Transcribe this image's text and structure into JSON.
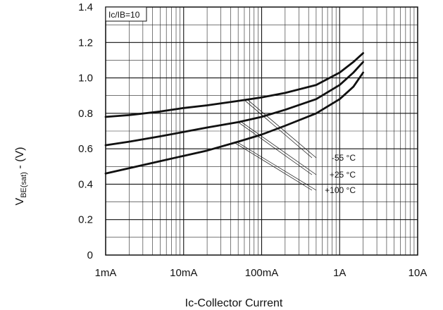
{
  "chart_data": {
    "type": "line",
    "xscale": "log",
    "xlim": [
      0.001,
      10
    ],
    "ylim": [
      0,
      1.4
    ],
    "x_ticks": [
      {
        "value": 0.001,
        "label": "1mA"
      },
      {
        "value": 0.01,
        "label": "10mA"
      },
      {
        "value": 0.1,
        "label": "100mA"
      },
      {
        "value": 1,
        "label": "1A"
      },
      {
        "value": 10,
        "label": "10A"
      }
    ],
    "y_ticks": [
      {
        "value": 0,
        "label": "0"
      },
      {
        "value": 0.2,
        "label": "0.2"
      },
      {
        "value": 0.4,
        "label": "0.4"
      },
      {
        "value": 0.6,
        "label": "0.6"
      },
      {
        "value": 0.8,
        "label": "0.8"
      },
      {
        "value": 1.0,
        "label": "1.0"
      },
      {
        "value": 1.2,
        "label": "1.2"
      },
      {
        "value": 1.4,
        "label": "1.4"
      }
    ],
    "xlabel": "Ic-Collector Current",
    "ylabel_main": "V",
    "ylabel_sub": "BE(sat)",
    "ylabel_suffix": " - (V)",
    "condition_label": "Ic/IB=10",
    "grid": true,
    "series": [
      {
        "name": "-55 °C",
        "x": [
          0.001,
          0.002,
          0.005,
          0.01,
          0.02,
          0.05,
          0.1,
          0.2,
          0.5,
          1,
          1.5,
          2
        ],
        "y": [
          0.78,
          0.79,
          0.81,
          0.83,
          0.845,
          0.87,
          0.89,
          0.915,
          0.96,
          1.03,
          1.09,
          1.14
        ]
      },
      {
        "name": "+25 °C",
        "x": [
          0.001,
          0.002,
          0.005,
          0.01,
          0.02,
          0.05,
          0.1,
          0.2,
          0.5,
          1,
          1.5,
          2
        ],
        "y": [
          0.62,
          0.64,
          0.67,
          0.695,
          0.72,
          0.75,
          0.78,
          0.82,
          0.88,
          0.96,
          1.03,
          1.09
        ]
      },
      {
        "name": "+100 °C",
        "x": [
          0.001,
          0.002,
          0.005,
          0.01,
          0.02,
          0.05,
          0.1,
          0.2,
          0.5,
          1,
          1.5,
          2
        ],
        "y": [
          0.46,
          0.49,
          0.53,
          0.56,
          0.59,
          0.64,
          0.68,
          0.73,
          0.8,
          0.88,
          0.95,
          1.03
        ]
      }
    ]
  }
}
